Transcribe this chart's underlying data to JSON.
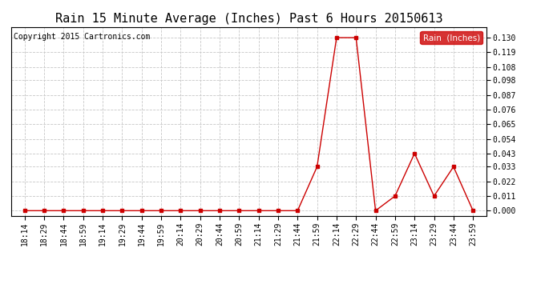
{
  "title": "Rain 15 Minute Average (Inches) Past 6 Hours 20150613",
  "copyright": "Copyright 2015 Cartronics.com",
  "legend_label": "Rain  (Inches)",
  "times": [
    "18:14",
    "18:29",
    "18:44",
    "18:59",
    "19:14",
    "19:29",
    "19:44",
    "19:59",
    "20:14",
    "20:29",
    "20:44",
    "20:59",
    "21:14",
    "21:29",
    "21:44",
    "21:59",
    "22:14",
    "22:29",
    "22:44",
    "22:59",
    "23:14",
    "23:29",
    "23:44",
    "23:59"
  ],
  "y_data": [
    0.0,
    0.0,
    0.0,
    0.0,
    0.0,
    0.0,
    0.0,
    0.0,
    0.0,
    0.0,
    0.0,
    0.0,
    0.0,
    0.0,
    0.0,
    0.033,
    0.13,
    0.13,
    0.0,
    0.011,
    0.043,
    0.011,
    0.033,
    0.0
  ],
  "y_ticks": [
    0.0,
    0.011,
    0.022,
    0.033,
    0.043,
    0.054,
    0.065,
    0.076,
    0.087,
    0.098,
    0.108,
    0.119,
    0.13
  ],
  "line_color": "#cc0000",
  "marker": "s",
  "marker_size": 2.5,
  "background_color": "#ffffff",
  "grid_color": "#c8c8c8",
  "title_fontsize": 11,
  "tick_fontsize": 7,
  "copyright_fontsize": 7,
  "ylim": [
    -0.004,
    0.138
  ],
  "legend_bg": "#cc0000",
  "legend_text_color": "#ffffff",
  "legend_fontsize": 7.5
}
